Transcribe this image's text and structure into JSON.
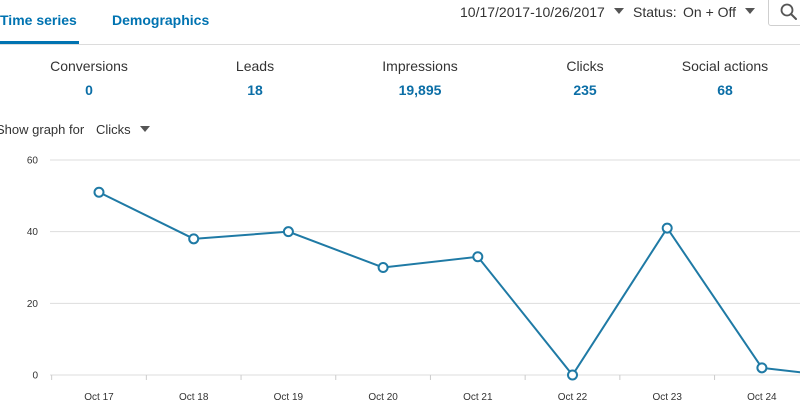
{
  "tabs": [
    {
      "label": "Time series",
      "active": true
    },
    {
      "label": "Demographics",
      "active": false
    }
  ],
  "filters": {
    "date_range": "10/17/2017-10/26/2017",
    "status_label": "Status:",
    "status_value": "On + Off"
  },
  "icons": {
    "search": "search-icon",
    "dropdown": "chevron-down-icon"
  },
  "metrics": [
    {
      "label": "Conversions",
      "value": "0"
    },
    {
      "label": "Leads",
      "value": "18"
    },
    {
      "label": "Impressions",
      "value": "19,895"
    },
    {
      "label": "Clicks",
      "value": "235"
    },
    {
      "label": "Social actions",
      "value": "68"
    }
  ],
  "graph_selector": {
    "label": "Show graph for",
    "value": "Clicks"
  },
  "colors": {
    "accent": "#0073b1",
    "line": "#1f7aa5",
    "grid": "#dddddd"
  },
  "chart_data": {
    "type": "line",
    "title": "",
    "xlabel": "",
    "ylabel": "",
    "categories": [
      "Oct 17",
      "Oct 18",
      "Oct 19",
      "Oct 20",
      "Oct 21",
      "Oct 22",
      "Oct 23",
      "Oct 24"
    ],
    "series": [
      {
        "values": [
          51,
          38,
          40,
          30,
          33,
          0,
          41,
          2
        ]
      }
    ],
    "ylim": [
      0,
      60
    ],
    "yticks": [
      0,
      20,
      40,
      60
    ],
    "grid": true,
    "legend": "none"
  }
}
